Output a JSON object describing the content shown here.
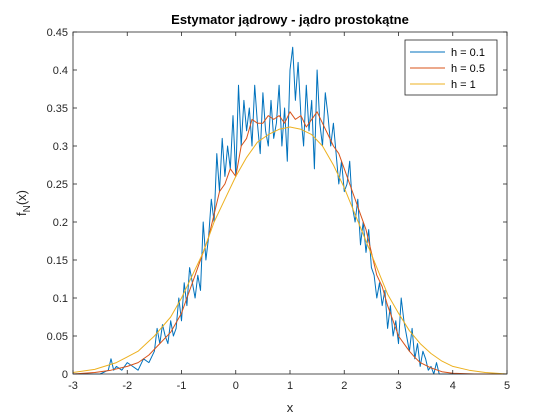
{
  "chart_data": {
    "type": "line",
    "title": "Estymator jądrowy - jądro prostokątne",
    "xlabel": "x",
    "ylabel_main": "f",
    "ylabel_sub": "N",
    "ylabel_tail": "(x)",
    "xlim": [
      -3,
      5
    ],
    "ylim": [
      0,
      0.45
    ],
    "xticks": [
      -3,
      -2,
      -1,
      0,
      1,
      2,
      3,
      4,
      5
    ],
    "xtick_labels": [
      "-3",
      "-2",
      "-1",
      "0",
      "1",
      "2",
      "3",
      "4",
      "5"
    ],
    "yticks": [
      0,
      0.05,
      0.1,
      0.15,
      0.2,
      0.25,
      0.3,
      0.35,
      0.4,
      0.45
    ],
    "ytick_labels": [
      "0",
      "0.05",
      "0.1",
      "0.15",
      "0.2",
      "0.25",
      "0.3",
      "0.35",
      "0.4",
      "0.45"
    ],
    "grid": false,
    "legend_position": "top-right",
    "series": [
      {
        "name": "h = 0.1",
        "color": "#0072BD",
        "x": [
          -3.0,
          -2.8,
          -2.5,
          -2.35,
          -2.3,
          -2.25,
          -2.2,
          -2.1,
          -2.0,
          -1.9,
          -1.8,
          -1.7,
          -1.6,
          -1.5,
          -1.45,
          -1.4,
          -1.35,
          -1.3,
          -1.25,
          -1.2,
          -1.15,
          -1.1,
          -1.05,
          -1.0,
          -0.95,
          -0.9,
          -0.85,
          -0.8,
          -0.75,
          -0.7,
          -0.65,
          -0.6,
          -0.55,
          -0.5,
          -0.45,
          -0.4,
          -0.35,
          -0.3,
          -0.25,
          -0.2,
          -0.15,
          -0.1,
          -0.05,
          0.0,
          0.05,
          0.1,
          0.15,
          0.2,
          0.25,
          0.3,
          0.35,
          0.4,
          0.45,
          0.5,
          0.55,
          0.6,
          0.65,
          0.7,
          0.75,
          0.8,
          0.85,
          0.9,
          0.95,
          1.0,
          1.05,
          1.1,
          1.15,
          1.2,
          1.25,
          1.3,
          1.35,
          1.4,
          1.45,
          1.5,
          1.55,
          1.6,
          1.65,
          1.7,
          1.75,
          1.8,
          1.85,
          1.9,
          1.95,
          2.0,
          2.05,
          2.1,
          2.15,
          2.2,
          2.25,
          2.3,
          2.35,
          2.4,
          2.45,
          2.5,
          2.55,
          2.6,
          2.65,
          2.7,
          2.75,
          2.8,
          2.85,
          2.9,
          2.95,
          3.0,
          3.05,
          3.1,
          3.15,
          3.2,
          3.25,
          3.3,
          3.35,
          3.4,
          3.45,
          3.5,
          3.55,
          3.6,
          3.65,
          3.7,
          3.75,
          3.8,
          3.9,
          4.0,
          4.5,
          5.0
        ],
        "values": [
          0.0,
          0.0,
          0.0,
          0.005,
          0.02,
          0.005,
          0.01,
          0.005,
          0.015,
          0.01,
          0.005,
          0.02,
          0.015,
          0.03,
          0.06,
          0.04,
          0.065,
          0.05,
          0.04,
          0.07,
          0.05,
          0.06,
          0.1,
          0.07,
          0.12,
          0.09,
          0.14,
          0.12,
          0.1,
          0.13,
          0.11,
          0.2,
          0.15,
          0.18,
          0.23,
          0.2,
          0.29,
          0.24,
          0.31,
          0.26,
          0.3,
          0.27,
          0.34,
          0.26,
          0.38,
          0.3,
          0.36,
          0.32,
          0.35,
          0.3,
          0.38,
          0.33,
          0.29,
          0.37,
          0.32,
          0.3,
          0.36,
          0.31,
          0.33,
          0.38,
          0.3,
          0.35,
          0.28,
          0.4,
          0.43,
          0.36,
          0.41,
          0.34,
          0.3,
          0.38,
          0.32,
          0.36,
          0.27,
          0.4,
          0.33,
          0.3,
          0.37,
          0.34,
          0.3,
          0.33,
          0.29,
          0.25,
          0.28,
          0.24,
          0.25,
          0.28,
          0.22,
          0.2,
          0.23,
          0.17,
          0.2,
          0.16,
          0.19,
          0.14,
          0.13,
          0.1,
          0.12,
          0.09,
          0.11,
          0.06,
          0.09,
          0.05,
          0.07,
          0.04,
          0.1,
          0.07,
          0.05,
          0.03,
          0.06,
          0.02,
          0.04,
          0.01,
          0.03,
          0.02,
          0.005,
          0.01,
          0.0,
          0.015,
          0.0,
          0.0,
          0.0,
          0.0,
          0.0,
          0.0
        ]
      },
      {
        "name": "h = 0.5",
        "color": "#D95319",
        "x": [
          -3.0,
          -2.6,
          -2.3,
          -2.0,
          -1.8,
          -1.6,
          -1.4,
          -1.2,
          -1.0,
          -0.9,
          -0.8,
          -0.7,
          -0.6,
          -0.5,
          -0.4,
          -0.3,
          -0.2,
          -0.1,
          0.0,
          0.1,
          0.2,
          0.3,
          0.4,
          0.5,
          0.6,
          0.7,
          0.8,
          0.9,
          1.0,
          1.1,
          1.2,
          1.3,
          1.4,
          1.5,
          1.6,
          1.7,
          1.8,
          1.9,
          2.0,
          2.1,
          2.2,
          2.3,
          2.4,
          2.5,
          2.6,
          2.7,
          2.8,
          2.9,
          3.0,
          3.1,
          3.2,
          3.3,
          3.4,
          3.6,
          3.8,
          4.0,
          4.4,
          5.0
        ],
        "values": [
          0.0,
          0.002,
          0.005,
          0.01,
          0.015,
          0.025,
          0.04,
          0.055,
          0.08,
          0.1,
          0.12,
          0.14,
          0.16,
          0.18,
          0.21,
          0.24,
          0.25,
          0.27,
          0.26,
          0.3,
          0.31,
          0.335,
          0.33,
          0.33,
          0.34,
          0.335,
          0.34,
          0.33,
          0.345,
          0.335,
          0.34,
          0.325,
          0.335,
          0.345,
          0.33,
          0.315,
          0.3,
          0.29,
          0.27,
          0.25,
          0.23,
          0.21,
          0.19,
          0.16,
          0.13,
          0.115,
          0.09,
          0.07,
          0.05,
          0.04,
          0.03,
          0.022,
          0.015,
          0.008,
          0.003,
          0.001,
          0.0,
          0.0
        ]
      },
      {
        "name": "h = 1",
        "color": "#EDB120",
        "x": [
          -3.0,
          -2.6,
          -2.2,
          -1.8,
          -1.5,
          -1.2,
          -1.0,
          -0.8,
          -0.6,
          -0.4,
          -0.2,
          0.0,
          0.2,
          0.4,
          0.6,
          0.8,
          1.0,
          1.2,
          1.4,
          1.6,
          1.8,
          2.0,
          2.2,
          2.4,
          2.6,
          2.8,
          3.0,
          3.2,
          3.4,
          3.6,
          3.8,
          4.0,
          4.3,
          4.6,
          5.0
        ],
        "values": [
          0.002,
          0.006,
          0.015,
          0.03,
          0.05,
          0.075,
          0.1,
          0.13,
          0.16,
          0.2,
          0.23,
          0.26,
          0.285,
          0.305,
          0.315,
          0.322,
          0.325,
          0.322,
          0.315,
          0.3,
          0.275,
          0.245,
          0.21,
          0.175,
          0.14,
          0.105,
          0.08,
          0.057,
          0.04,
          0.027,
          0.017,
          0.01,
          0.005,
          0.002,
          0.0
        ]
      }
    ]
  }
}
